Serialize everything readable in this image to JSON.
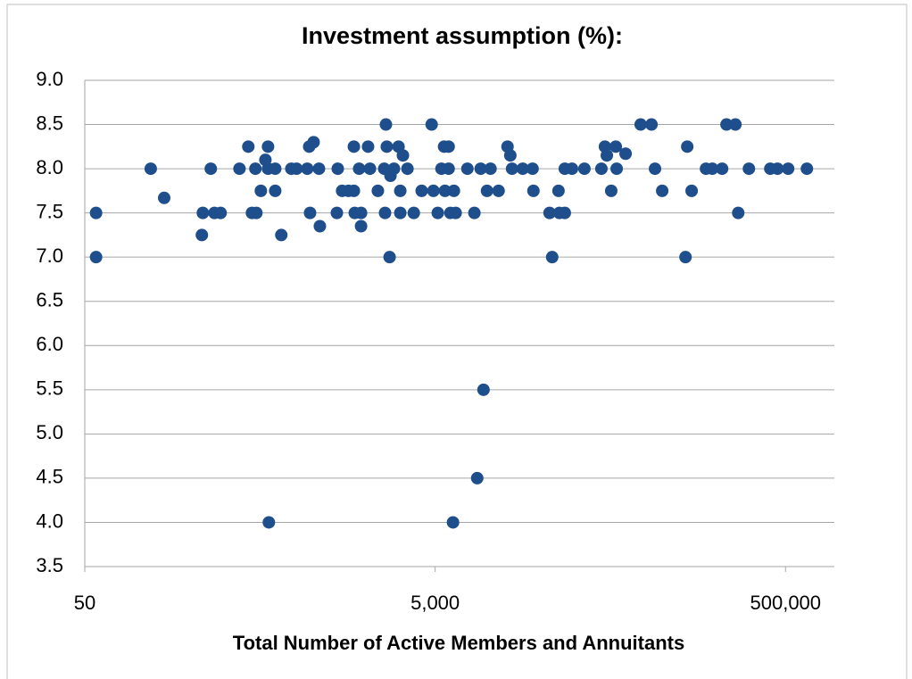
{
  "chart_data": {
    "type": "scatter",
    "title": "Investment assumption (%):",
    "x_label": "Total Number of Active Members and Annuitants",
    "x_scale": "log",
    "grid": true,
    "color": "#1f4e8c",
    "xlim": [
      50,
      950000
    ],
    "ylim": [
      3.5,
      9.0
    ],
    "xticks": [
      50,
      {
        "value": 5000,
        "label": "5,000"
      },
      {
        "value": 500000,
        "label": "500,000"
      }
    ],
    "yticks": [
      {
        "value": 3.5,
        "label": "3.5"
      },
      {
        "value": 4,
        "label": "4.0"
      },
      {
        "value": 4.5,
        "label": "4.5"
      },
      {
        "value": 5,
        "label": "5.0"
      },
      {
        "value": 5.5,
        "label": "5.5"
      },
      {
        "value": 6,
        "label": "6.0"
      },
      {
        "value": 6.5,
        "label": "6.5"
      },
      {
        "value": 7,
        "label": "7.0"
      },
      {
        "value": 7.5,
        "label": "7.5"
      },
      {
        "value": 8,
        "label": "8.0"
      },
      {
        "value": 8.5,
        "label": "8.5"
      },
      {
        "value": 9,
        "label": "9.0"
      }
    ],
    "x": [
      58,
      58,
      119,
      142,
      233,
      236,
      262,
      275,
      298,
      382,
      429,
      450,
      477,
      471,
      506,
      537,
      556,
      556,
      562,
      611,
      611,
      662,
      755,
      809,
      931,
      955,
      966,
      1012,
      1086,
      1099,
      1374,
      1390,
      1472,
      1600,
      1718,
      1718,
      1738,
      1841,
      1888,
      1888,
      2070,
      2123,
      2355,
      2559,
      2588,
      2618,
      2649,
      2748,
      2780,
      2911,
      3090,
      3162,
      3162,
      3273,
      3475,
      3776,
      4188,
      4775,
      4887,
      5176,
      5433,
      5623,
      5689,
      5970,
      5970,
      6109,
      6324,
      6397,
      6546,
      7638,
      8375,
      8690,
      9099,
      9441,
      9886,
      10351,
      11508,
      12942,
      13428,
      13740,
      15812,
      17989,
      18197,
      22491,
      23281,
      25293,
      25586,
      27479,
      27479,
      30200,
      35563,
      44463,
      46559,
      47753,
      50582,
      53703,
      54325,
      61094,
      74473,
      85901,
      89950,
      98855,
      134276,
      137404,
      145546,
      175792,
      190985,
      217270,
      230144,
      258821,
      268534,
      309029,
      409260,
      449780,
      517607,
      662217
    ],
    "values": [
      7.5,
      7.0,
      8.0,
      7.67,
      7.25,
      7.5,
      8.0,
      7.5,
      7.5,
      8.0,
      8.25,
      7.5,
      7.5,
      8.0,
      7.75,
      8.1,
      8.25,
      8.0,
      4.0,
      8.0,
      7.75,
      7.25,
      8.0,
      8.0,
      8.0,
      8.25,
      7.5,
      8.3,
      8.0,
      7.35,
      7.5,
      8.0,
      7.75,
      7.75,
      8.25,
      7.75,
      7.5,
      8.0,
      7.5,
      7.35,
      8.25,
      8.0,
      7.75,
      8.0,
      7.5,
      8.5,
      8.25,
      7.0,
      7.92,
      8.0,
      8.25,
      7.75,
      7.5,
      8.15,
      8.0,
      7.5,
      7.75,
      8.5,
      7.75,
      7.5,
      8.0,
      8.25,
      7.75,
      8.25,
      8.0,
      7.5,
      4.0,
      7.75,
      7.5,
      8.0,
      7.5,
      4.5,
      8.0,
      5.5,
      7.75,
      8.0,
      7.75,
      8.25,
      8.15,
      8.0,
      8.0,
      8.0,
      7.75,
      7.5,
      7.0,
      7.75,
      7.5,
      7.5,
      8.0,
      8.0,
      8.0,
      8.0,
      8.25,
      8.15,
      7.75,
      8.25,
      8.0,
      8.17,
      8.5,
      8.5,
      8.0,
      7.75,
      7.0,
      8.25,
      7.75,
      8.0,
      8.0,
      8.0,
      8.5,
      8.5,
      7.5,
      8.0,
      8.0,
      8.0,
      8.0,
      8.0
    ]
  }
}
